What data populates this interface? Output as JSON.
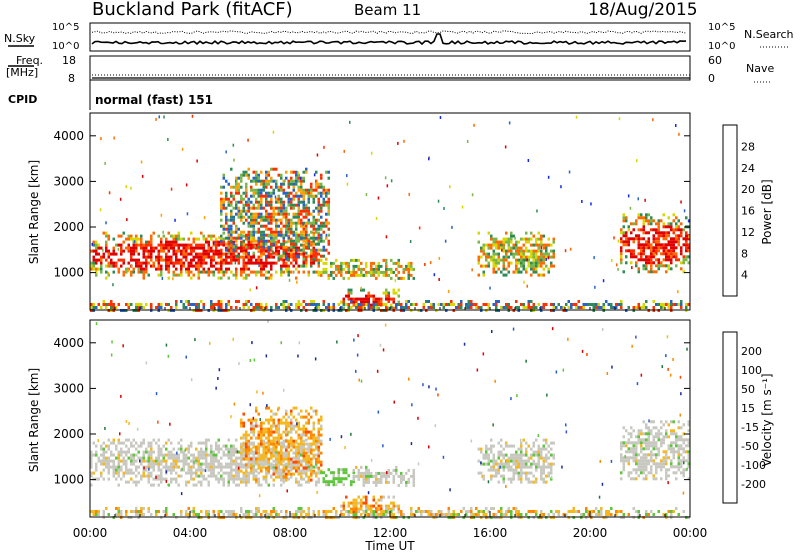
{
  "header": {
    "title": "Buckland Park (fitACF)",
    "beam": "Beam 11",
    "date": "18/Aug/2015"
  },
  "panels": {
    "noise": {
      "left_label": "N.Sky",
      "right_label": "N.Search",
      "left_ticks": [
        "10^5",
        "10^0"
      ],
      "right_ticks": [
        "10^5",
        "10^0"
      ]
    },
    "freq": {
      "left_label_1": "Freq.",
      "left_label_2": "[MHz]",
      "right_label": "Nave",
      "left_ticks": [
        "18",
        "8"
      ],
      "right_ticks": [
        "60",
        "0"
      ]
    },
    "cpid": {
      "label": "CPID",
      "value": "normal (fast) 151"
    }
  },
  "chart_data": [
    {
      "type": "heatmap",
      "name": "power",
      "ylabel": "Slant Range [km]",
      "ylim": [
        180,
        4500
      ],
      "yticks": [
        "1000",
        "2000",
        "3000",
        "4000"
      ],
      "xlim": [
        "00:00",
        "24:00"
      ],
      "colorbar": {
        "label": "Power [dB]",
        "ticks": [
          "4",
          "8",
          "12",
          "16",
          "20",
          "24",
          "28"
        ],
        "colors": [
          "#1428e8",
          "#2864c8",
          "#2e8b57",
          "#7ab648",
          "#d8d800",
          "#ffa000",
          "#ff6a00",
          "#ff3000",
          "#e00000"
        ]
      },
      "regions": [
        {
          "t0": 0.0,
          "t1": 9.2,
          "r0": 900,
          "r1": 1900,
          "level": "strong"
        },
        {
          "t0": 5.2,
          "t1": 9.6,
          "r0": 1300,
          "r1": 3300,
          "level": "mixed"
        },
        {
          "t0": 9.2,
          "t1": 13.0,
          "r0": 900,
          "r1": 1300,
          "level": "medium"
        },
        {
          "t0": 10.0,
          "t1": 12.3,
          "r0": 250,
          "r1": 650,
          "level": "strong"
        },
        {
          "t0": 15.5,
          "t1": 18.6,
          "r0": 950,
          "r1": 1900,
          "level": "medium"
        },
        {
          "t0": 21.2,
          "t1": 24.0,
          "r0": 1000,
          "r1": 2300,
          "level": "strong"
        },
        {
          "t0": 0.0,
          "t1": 24.0,
          "r0": 180,
          "r1": 400,
          "level": "clutter"
        }
      ]
    },
    {
      "type": "heatmap",
      "name": "velocity",
      "ylabel": "Slant Range [km]",
      "xlabel": "Time UT",
      "ylim": [
        180,
        4500
      ],
      "yticks": [
        "1000",
        "2000",
        "3000",
        "4000"
      ],
      "xticks": [
        "00:00",
        "04:00",
        "08:00",
        "12:00",
        "16:00",
        "20:00",
        "00:00"
      ],
      "xlim": [
        "00:00",
        "24:00"
      ],
      "colorbar": {
        "label": "Velocity [m s⁻¹]",
        "ticks": [
          "200",
          "100",
          "50",
          "15",
          "-15",
          "-50",
          "-100",
          "-200"
        ],
        "colors": [
          "#1a2a9a",
          "#2a5ad0",
          "#1f7a3a",
          "#5ec63a",
          "#c8c8c0",
          "#f4b820",
          "#ff8800",
          "#ff4a00",
          "#e00000"
        ]
      },
      "regions": [
        {
          "t0": 0.0,
          "t1": 9.2,
          "r0": 900,
          "r1": 1900,
          "level": "ground"
        },
        {
          "t0": 6.0,
          "t1": 9.3,
          "r0": 1000,
          "r1": 2600,
          "level": "neg"
        },
        {
          "t0": 9.2,
          "t1": 10.6,
          "r0": 900,
          "r1": 1250,
          "level": "pos"
        },
        {
          "t0": 10.5,
          "t1": 13.0,
          "r0": 900,
          "r1": 1300,
          "level": "ground"
        },
        {
          "t0": 10.0,
          "t1": 12.3,
          "r0": 250,
          "r1": 650,
          "level": "neg"
        },
        {
          "t0": 15.5,
          "t1": 18.6,
          "r0": 950,
          "r1": 1900,
          "level": "ground"
        },
        {
          "t0": 21.2,
          "t1": 24.0,
          "r0": 1000,
          "r1": 2300,
          "level": "ground"
        },
        {
          "t0": 0.0,
          "t1": 24.0,
          "r0": 180,
          "r1": 400,
          "level": "clutter"
        }
      ]
    }
  ]
}
